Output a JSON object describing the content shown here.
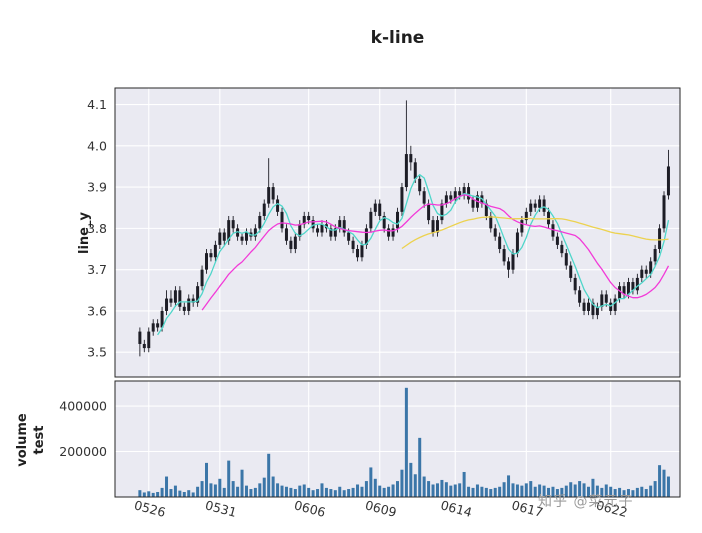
{
  "watermark": {
    "text": "知乎 @菜元子"
  },
  "chart_data": {
    "type": "candlestick",
    "title": "k-line",
    "grid": true,
    "legend": false,
    "xlim": [
      -5.6,
      121.6
    ],
    "x_ticks": [
      {
        "index": 2,
        "label": "0526"
      },
      {
        "index": 18,
        "label": "0531"
      },
      {
        "index": 38,
        "label": "0606"
      },
      {
        "index": 54,
        "label": "0609"
      },
      {
        "index": 71,
        "label": "0614"
      },
      {
        "index": 87,
        "label": "0617"
      },
      {
        "index": 106,
        "label": "0622"
      }
    ],
    "style": {
      "axes_bg": "#eaeaf2",
      "grid_color": "#ffffff",
      "frame_color": "#262626",
      "tick_color": "#333333"
    },
    "price": {
      "ylabel": "line_y",
      "ylim": [
        3.44,
        4.14
      ],
      "yticks": [
        3.5,
        3.6,
        3.7,
        3.8,
        3.9,
        4.0,
        4.1
      ],
      "candle_color": "#1d1d26",
      "ohlc": [
        [
          3.55,
          3.56,
          3.49,
          3.52
        ],
        [
          3.52,
          3.53,
          3.5,
          3.51
        ],
        [
          3.51,
          3.56,
          3.5,
          3.55
        ],
        [
          3.55,
          3.58,
          3.54,
          3.57
        ],
        [
          3.57,
          3.58,
          3.55,
          3.56
        ],
        [
          3.56,
          3.61,
          3.55,
          3.6
        ],
        [
          3.6,
          3.65,
          3.59,
          3.63
        ],
        [
          3.63,
          3.65,
          3.61,
          3.62
        ],
        [
          3.62,
          3.66,
          3.61,
          3.65
        ],
        [
          3.65,
          3.66,
          3.6,
          3.61
        ],
        [
          3.61,
          3.62,
          3.59,
          3.6
        ],
        [
          3.6,
          3.64,
          3.59,
          3.63
        ],
        [
          3.63,
          3.64,
          3.61,
          3.62
        ],
        [
          3.62,
          3.67,
          3.61,
          3.66
        ],
        [
          3.66,
          3.71,
          3.65,
          3.7
        ],
        [
          3.7,
          3.75,
          3.69,
          3.74
        ],
        [
          3.74,
          3.75,
          3.72,
          3.73
        ],
        [
          3.73,
          3.77,
          3.72,
          3.76
        ],
        [
          3.76,
          3.8,
          3.75,
          3.79
        ],
        [
          3.79,
          3.8,
          3.76,
          3.77
        ],
        [
          3.77,
          3.83,
          3.76,
          3.82
        ],
        [
          3.82,
          3.83,
          3.79,
          3.8
        ],
        [
          3.8,
          3.81,
          3.77,
          3.78
        ],
        [
          3.78,
          3.79,
          3.76,
          3.77
        ],
        [
          3.77,
          3.8,
          3.76,
          3.79
        ],
        [
          3.79,
          3.8,
          3.77,
          3.78
        ],
        [
          3.78,
          3.81,
          3.77,
          3.8
        ],
        [
          3.8,
          3.84,
          3.79,
          3.83
        ],
        [
          3.83,
          3.87,
          3.82,
          3.86
        ],
        [
          3.86,
          3.97,
          3.85,
          3.9
        ],
        [
          3.9,
          3.91,
          3.86,
          3.87
        ],
        [
          3.87,
          3.88,
          3.83,
          3.84
        ],
        [
          3.84,
          3.85,
          3.79,
          3.8
        ],
        [
          3.8,
          3.81,
          3.76,
          3.77
        ],
        [
          3.77,
          3.78,
          3.74,
          3.75
        ],
        [
          3.75,
          3.79,
          3.74,
          3.78
        ],
        [
          3.78,
          3.82,
          3.77,
          3.81
        ],
        [
          3.81,
          3.84,
          3.8,
          3.83
        ],
        [
          3.83,
          3.84,
          3.81,
          3.82
        ],
        [
          3.82,
          3.83,
          3.79,
          3.8
        ],
        [
          3.8,
          3.81,
          3.78,
          3.79
        ],
        [
          3.79,
          3.82,
          3.78,
          3.81
        ],
        [
          3.81,
          3.82,
          3.79,
          3.8
        ],
        [
          3.8,
          3.81,
          3.77,
          3.78
        ],
        [
          3.78,
          3.81,
          3.77,
          3.8
        ],
        [
          3.8,
          3.83,
          3.79,
          3.82
        ],
        [
          3.82,
          3.83,
          3.78,
          3.79
        ],
        [
          3.79,
          3.8,
          3.76,
          3.77
        ],
        [
          3.77,
          3.78,
          3.74,
          3.75
        ],
        [
          3.75,
          3.76,
          3.72,
          3.73
        ],
        [
          3.73,
          3.77,
          3.72,
          3.76
        ],
        [
          3.76,
          3.81,
          3.75,
          3.8
        ],
        [
          3.8,
          3.85,
          3.79,
          3.84
        ],
        [
          3.84,
          3.87,
          3.83,
          3.86
        ],
        [
          3.86,
          3.87,
          3.82,
          3.83
        ],
        [
          3.83,
          3.84,
          3.79,
          3.8
        ],
        [
          3.8,
          3.81,
          3.77,
          3.78
        ],
        [
          3.78,
          3.81,
          3.77,
          3.8
        ],
        [
          3.8,
          3.85,
          3.79,
          3.84
        ],
        [
          3.84,
          3.91,
          3.83,
          3.9
        ],
        [
          3.9,
          4.11,
          3.89,
          3.98
        ],
        [
          3.98,
          4.0,
          3.94,
          3.96
        ],
        [
          3.96,
          3.97,
          3.91,
          3.92
        ],
        [
          3.92,
          3.93,
          3.88,
          3.89
        ],
        [
          3.89,
          3.9,
          3.85,
          3.86
        ],
        [
          3.86,
          3.87,
          3.81,
          3.82
        ],
        [
          3.82,
          3.83,
          3.78,
          3.79
        ],
        [
          3.79,
          3.83,
          3.78,
          3.82
        ],
        [
          3.82,
          3.87,
          3.81,
          3.86
        ],
        [
          3.86,
          3.89,
          3.85,
          3.88
        ],
        [
          3.88,
          3.89,
          3.86,
          3.87
        ],
        [
          3.87,
          3.9,
          3.86,
          3.89
        ],
        [
          3.89,
          3.9,
          3.87,
          3.88
        ],
        [
          3.88,
          3.91,
          3.87,
          3.9
        ],
        [
          3.9,
          3.91,
          3.86,
          3.87
        ],
        [
          3.87,
          3.88,
          3.84,
          3.85
        ],
        [
          3.85,
          3.89,
          3.84,
          3.88
        ],
        [
          3.88,
          3.89,
          3.85,
          3.86
        ],
        [
          3.86,
          3.87,
          3.82,
          3.83
        ],
        [
          3.83,
          3.84,
          3.79,
          3.8
        ],
        [
          3.8,
          3.81,
          3.77,
          3.78
        ],
        [
          3.78,
          3.79,
          3.74,
          3.75
        ],
        [
          3.75,
          3.76,
          3.71,
          3.72
        ],
        [
          3.72,
          3.73,
          3.68,
          3.7
        ],
        [
          3.7,
          3.75,
          3.69,
          3.74
        ],
        [
          3.74,
          3.8,
          3.73,
          3.79
        ],
        [
          3.79,
          3.83,
          3.78,
          3.82
        ],
        [
          3.82,
          3.85,
          3.81,
          3.84
        ],
        [
          3.84,
          3.87,
          3.83,
          3.86
        ],
        [
          3.86,
          3.87,
          3.84,
          3.85
        ],
        [
          3.85,
          3.88,
          3.84,
          3.87
        ],
        [
          3.87,
          3.88,
          3.83,
          3.84
        ],
        [
          3.84,
          3.85,
          3.8,
          3.81
        ],
        [
          3.81,
          3.82,
          3.77,
          3.78
        ],
        [
          3.78,
          3.79,
          3.75,
          3.76
        ],
        [
          3.76,
          3.77,
          3.73,
          3.74
        ],
        [
          3.74,
          3.75,
          3.7,
          3.71
        ],
        [
          3.71,
          3.72,
          3.67,
          3.68
        ],
        [
          3.68,
          3.69,
          3.64,
          3.65
        ],
        [
          3.65,
          3.66,
          3.61,
          3.62
        ],
        [
          3.62,
          3.63,
          3.59,
          3.6
        ],
        [
          3.6,
          3.63,
          3.59,
          3.62
        ],
        [
          3.62,
          3.63,
          3.58,
          3.59
        ],
        [
          3.59,
          3.62,
          3.58,
          3.61
        ],
        [
          3.61,
          3.65,
          3.6,
          3.64
        ],
        [
          3.64,
          3.65,
          3.61,
          3.62
        ],
        [
          3.62,
          3.63,
          3.59,
          3.6
        ],
        [
          3.6,
          3.64,
          3.59,
          3.63
        ],
        [
          3.63,
          3.67,
          3.62,
          3.66
        ],
        [
          3.66,
          3.67,
          3.63,
          3.64
        ],
        [
          3.64,
          3.68,
          3.63,
          3.67
        ],
        [
          3.67,
          3.68,
          3.64,
          3.65
        ],
        [
          3.65,
          3.69,
          3.64,
          3.68
        ],
        [
          3.68,
          3.71,
          3.67,
          3.7
        ],
        [
          3.7,
          3.71,
          3.68,
          3.69
        ],
        [
          3.69,
          3.73,
          3.68,
          3.72
        ],
        [
          3.72,
          3.76,
          3.71,
          3.75
        ],
        [
          3.75,
          3.81,
          3.74,
          3.8
        ],
        [
          3.8,
          3.89,
          3.79,
          3.88
        ],
        [
          3.88,
          3.99,
          3.87,
          3.95
        ]
      ],
      "moving_averages": [
        {
          "name": "MA5",
          "window": 5,
          "color": "#4fd6ca"
        },
        {
          "name": "MA15",
          "window": 15,
          "color": "#f23ad8"
        },
        {
          "name": "MA60",
          "window": 60,
          "color": "#ecd24f"
        }
      ]
    },
    "volume": {
      "ylabel": "volume\ntest",
      "ylim": [
        0,
        510000
      ],
      "yticks": [
        200000,
        400000
      ],
      "bar_color": "#3b76a8",
      "values": [
        30000,
        20000,
        25000,
        18000,
        22000,
        40000,
        90000,
        35000,
        50000,
        28000,
        22000,
        30000,
        20000,
        45000,
        70000,
        150000,
        60000,
        55000,
        80000,
        40000,
        160000,
        70000,
        45000,
        120000,
        50000,
        35000,
        40000,
        60000,
        85000,
        190000,
        90000,
        60000,
        50000,
        45000,
        40000,
        35000,
        50000,
        55000,
        40000,
        30000,
        35000,
        60000,
        40000,
        35000,
        30000,
        45000,
        30000,
        35000,
        40000,
        55000,
        45000,
        70000,
        130000,
        80000,
        50000,
        40000,
        45000,
        55000,
        70000,
        120000,
        480000,
        150000,
        100000,
        260000,
        90000,
        70000,
        55000,
        60000,
        75000,
        65000,
        50000,
        55000,
        60000,
        110000,
        45000,
        40000,
        55000,
        45000,
        40000,
        35000,
        40000,
        45000,
        65000,
        95000,
        60000,
        55000,
        50000,
        60000,
        70000,
        45000,
        55000,
        50000,
        40000,
        45000,
        35000,
        40000,
        50000,
        65000,
        55000,
        70000,
        60000,
        45000,
        80000,
        50000,
        40000,
        55000,
        45000,
        35000,
        40000,
        30000,
        35000,
        30000,
        40000,
        45000,
        35000,
        50000,
        70000,
        140000,
        120000,
        90000
      ]
    }
  }
}
